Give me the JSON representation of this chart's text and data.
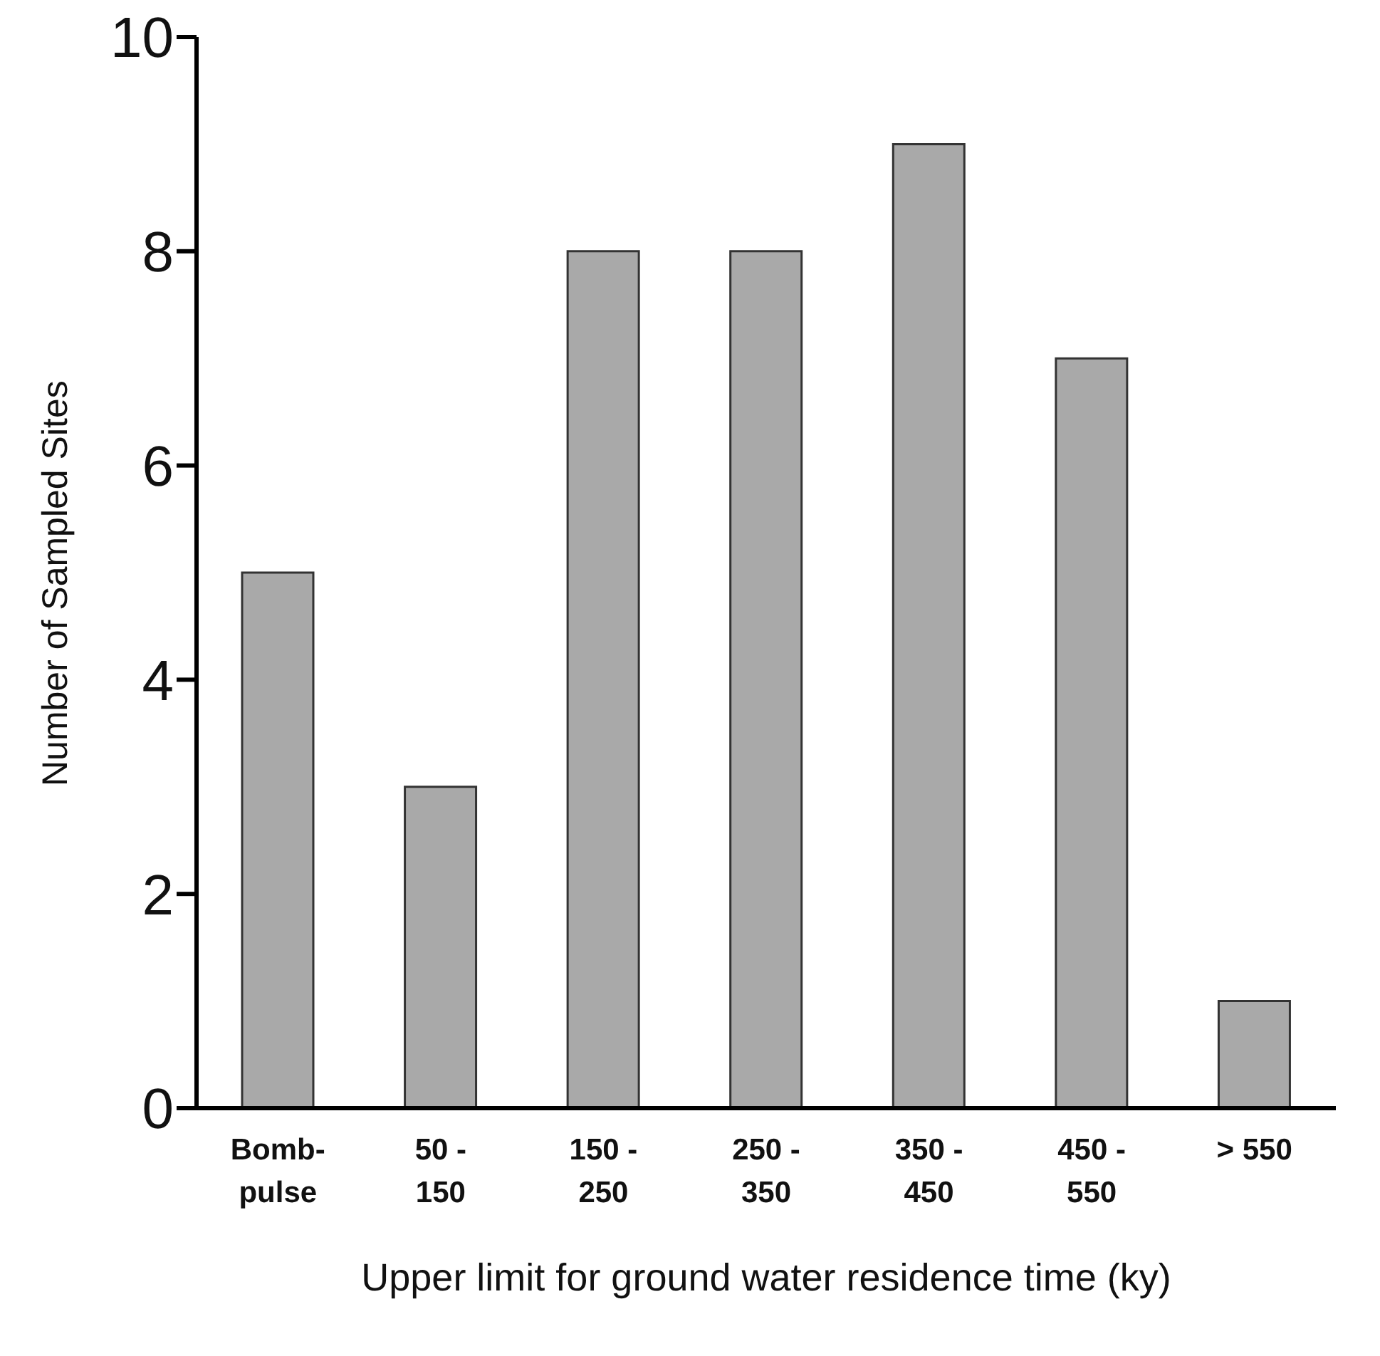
{
  "chart_data": {
    "type": "bar",
    "xlabel": "Upper limit for ground water residence time (ky)",
    "ylabel": "Number of Sampled Sites",
    "categories": [
      "Bomb-\npulse",
      "50 -\n150",
      "150 -\n250",
      "250 -\n350",
      "350 -\n450",
      "450 -\n550",
      "> 550"
    ],
    "values": [
      5,
      3,
      8,
      8,
      9,
      7,
      1
    ],
    "color": "#a9a9a9",
    "ylim": [
      0,
      10
    ],
    "yticks": [
      0,
      2,
      4,
      6,
      8,
      10
    ],
    "grid": false,
    "legend": false
  }
}
